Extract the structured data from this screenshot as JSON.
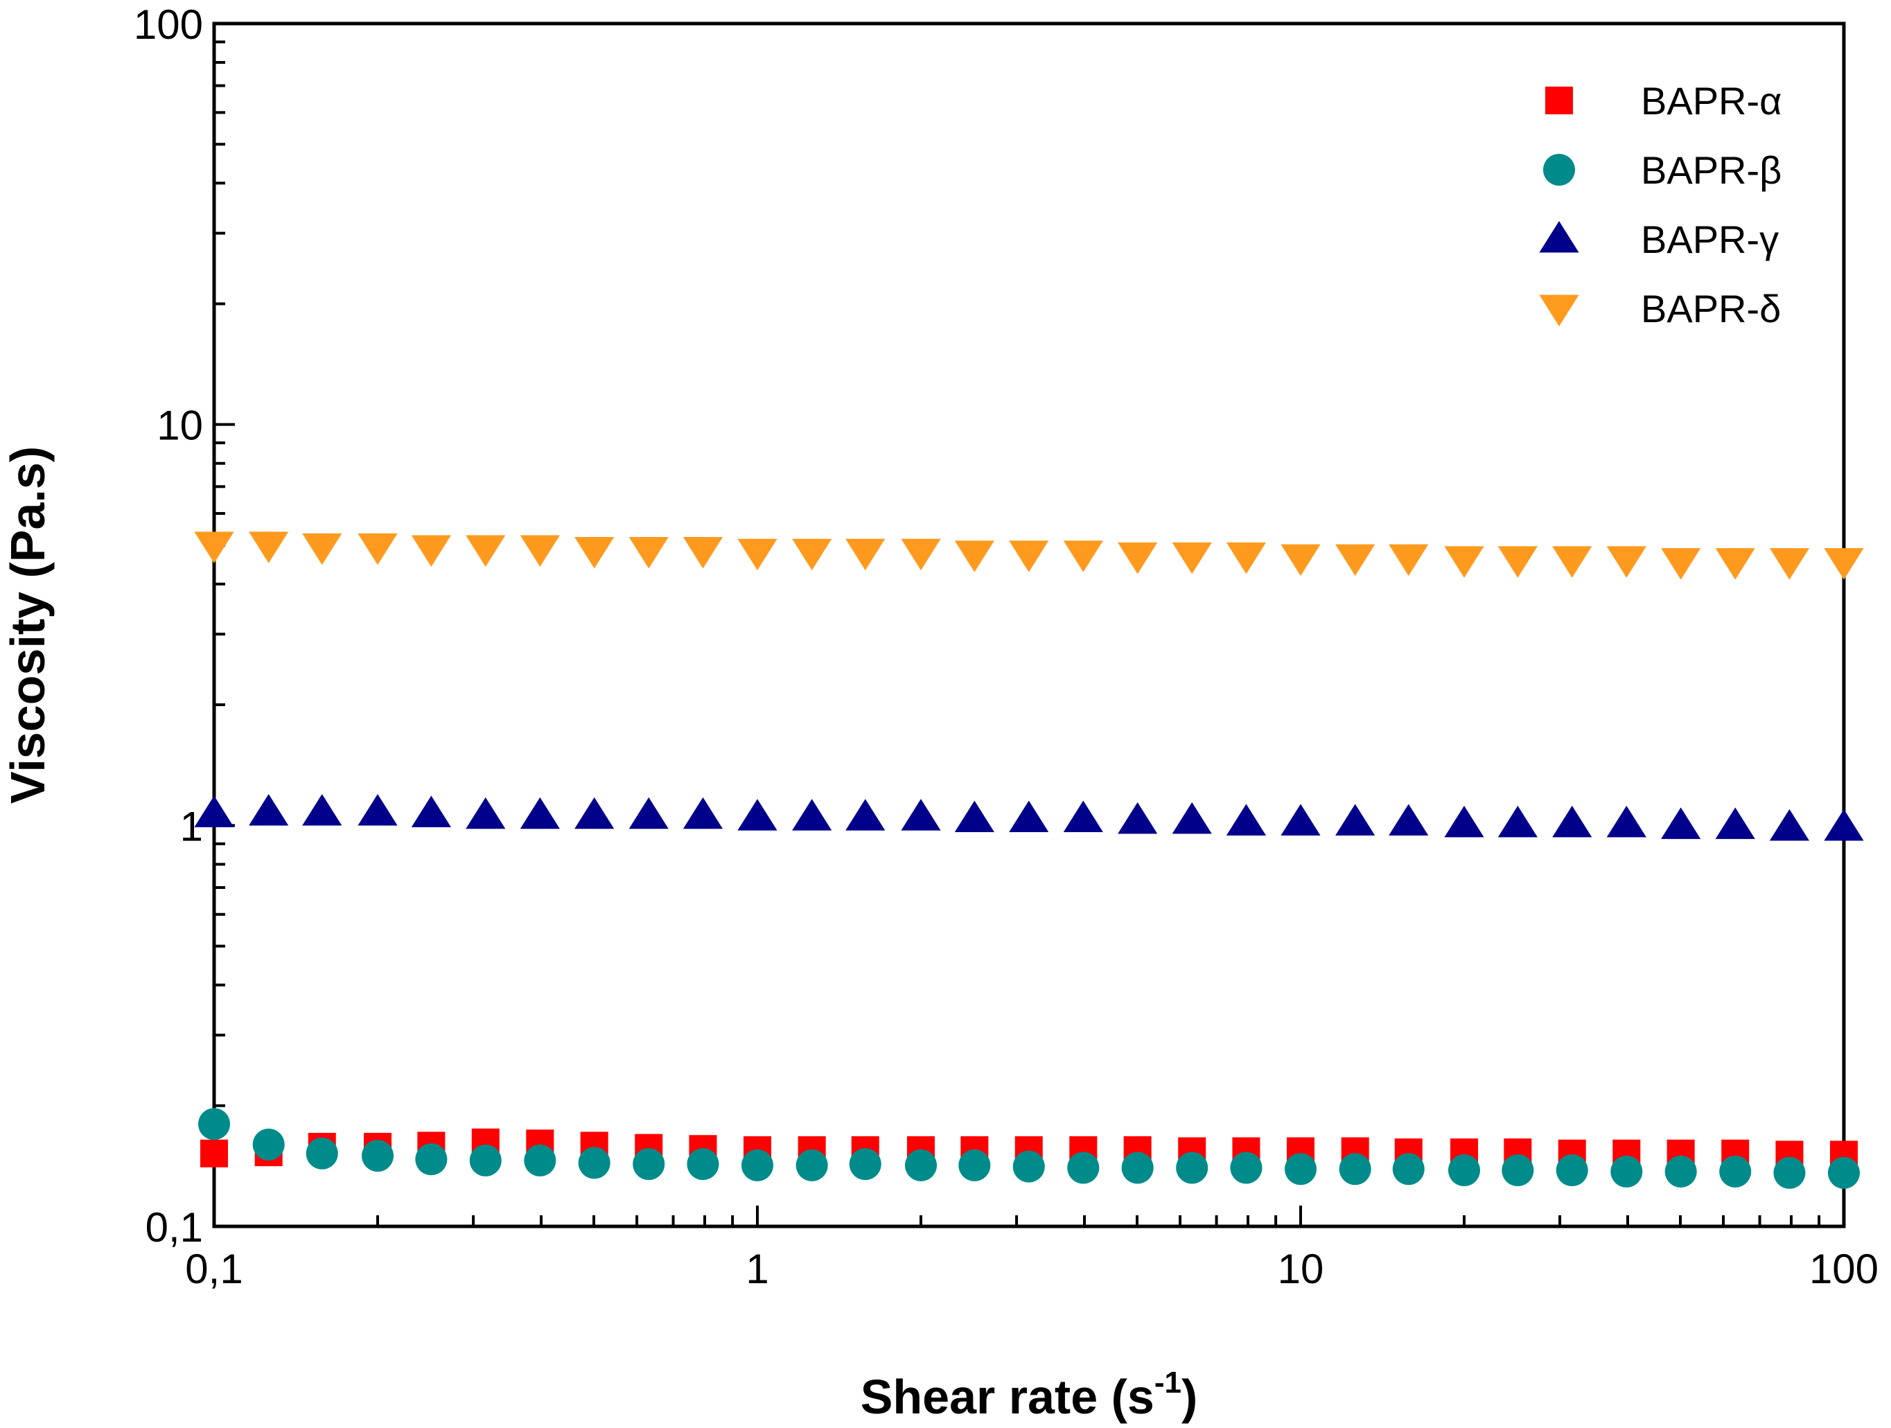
{
  "chart_data": {
    "type": "scatter",
    "xscale": "log",
    "yscale": "log",
    "xlim": [
      0.1,
      100
    ],
    "ylim": [
      0.1,
      100
    ],
    "xlabel": "Shear rate (s",
    "xlabel_sup": "-1",
    "xlabel_end": ")",
    "ylabel": "Viscosity (Pa.s)",
    "xticks": [
      {
        "value": 0.1,
        "label": "0,1"
      },
      {
        "value": 1,
        "label": "1"
      },
      {
        "value": 10,
        "label": "10"
      },
      {
        "value": 100,
        "label": "100"
      }
    ],
    "yticks": [
      {
        "value": 0.1,
        "label": "0,1"
      },
      {
        "value": 1,
        "label": "1"
      },
      {
        "value": 10,
        "label": "10"
      },
      {
        "value": 100,
        "label": "100"
      }
    ],
    "legend_position": "top-right",
    "x": [
      0.1,
      0.126,
      0.158,
      0.2,
      0.251,
      0.316,
      0.398,
      0.501,
      0.631,
      0.794,
      1,
      1.26,
      1.58,
      2,
      2.51,
      3.16,
      3.98,
      5.01,
      6.31,
      7.94,
      10,
      12.6,
      15.8,
      20,
      25.1,
      31.6,
      39.8,
      50.1,
      63.1,
      79.4,
      100
    ],
    "series": [
      {
        "name": "BAPR-α",
        "marker": "square",
        "color": "#ff0000",
        "values": [
          0.152,
          0.153,
          0.158,
          0.158,
          0.159,
          0.162,
          0.161,
          0.159,
          0.157,
          0.156,
          0.155,
          0.155,
          0.155,
          0.155,
          0.155,
          0.155,
          0.155,
          0.155,
          0.154,
          0.154,
          0.154,
          0.154,
          0.153,
          0.153,
          0.153,
          0.152,
          0.152,
          0.152,
          0.152,
          0.151,
          0.151
        ]
      },
      {
        "name": "BAPR-β",
        "marker": "circle",
        "color": "#008b8b",
        "values": [
          0.18,
          0.16,
          0.152,
          0.15,
          0.147,
          0.146,
          0.146,
          0.144,
          0.143,
          0.143,
          0.142,
          0.142,
          0.143,
          0.142,
          0.142,
          0.141,
          0.14,
          0.14,
          0.14,
          0.14,
          0.139,
          0.139,
          0.139,
          0.138,
          0.138,
          0.138,
          0.137,
          0.137,
          0.137,
          0.136,
          0.136
        ]
      },
      {
        "name": "BAPR-γ",
        "marker": "triangle-up",
        "color": "#00008b",
        "values": [
          1.07,
          1.08,
          1.08,
          1.08,
          1.07,
          1.06,
          1.06,
          1.06,
          1.06,
          1.06,
          1.05,
          1.05,
          1.05,
          1.05,
          1.04,
          1.04,
          1.04,
          1.03,
          1.03,
          1.02,
          1.02,
          1.02,
          1.02,
          1.01,
          1.01,
          1.01,
          1.01,
          1.0,
          1.0,
          0.99,
          0.99
        ]
      },
      {
        "name": "BAPR-δ",
        "marker": "triangle-down",
        "color": "#ff9a1e",
        "values": [
          5.0,
          5.0,
          4.95,
          4.95,
          4.9,
          4.9,
          4.9,
          4.85,
          4.85,
          4.85,
          4.8,
          4.8,
          4.8,
          4.8,
          4.75,
          4.75,
          4.75,
          4.7,
          4.7,
          4.7,
          4.65,
          4.65,
          4.65,
          4.6,
          4.6,
          4.6,
          4.6,
          4.55,
          4.55,
          4.55,
          4.55
        ]
      }
    ]
  }
}
